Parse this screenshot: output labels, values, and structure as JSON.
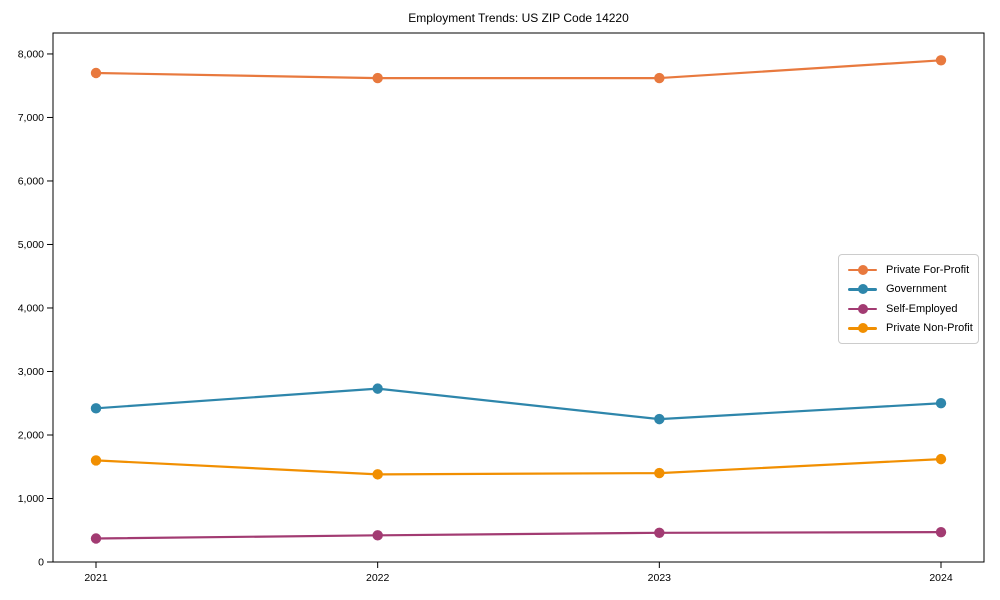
{
  "chart_data": {
    "type": "line",
    "title": "Employment Trends: US ZIP Code 14220",
    "x": [
      "2021",
      "2022",
      "2023",
      "2024"
    ],
    "series": [
      {
        "name": "Private For-Profit",
        "color": "#E8793E",
        "values": [
          7700,
          7620,
          7620,
          7900
        ]
      },
      {
        "name": "Government",
        "color": "#2E86AB",
        "values": [
          2420,
          2730,
          2250,
          2500
        ]
      },
      {
        "name": "Self-Employed",
        "color": "#A23B72",
        "values": [
          370,
          420,
          460,
          470
        ]
      },
      {
        "name": "Private Non-Profit",
        "color": "#F18F01",
        "values": [
          1600,
          1380,
          1400,
          1620
        ]
      }
    ],
    "ylim": [
      0,
      8330
    ],
    "yticks": [
      0,
      1000,
      2000,
      3000,
      4000,
      5000,
      6000,
      7000,
      8000
    ],
    "ytick_labels": [
      "0",
      "1,000",
      "2,000",
      "3,000",
      "4,000",
      "5,000",
      "6,000",
      "7,000",
      "8,000"
    ],
    "xlabel": "",
    "ylabel": "",
    "grid": false,
    "legend_position": "center right"
  }
}
